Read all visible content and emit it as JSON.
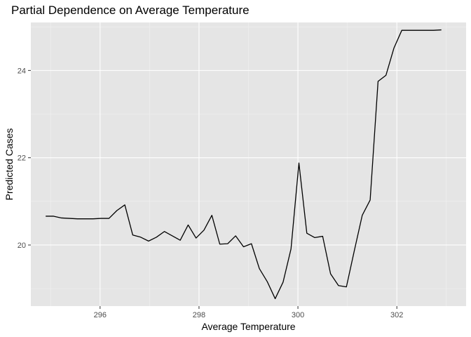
{
  "chart_data": {
    "type": "line",
    "title": "Partial Dependence on Average Temperature",
    "xlabel": "Average Temperature",
    "ylabel": "Predicted Cases",
    "xlim": [
      294.6,
      303.4
    ],
    "ylim": [
      18.6,
      25.1
    ],
    "x_ticks": [
      296,
      298,
      300,
      302
    ],
    "y_ticks": [
      20,
      22,
      24
    ],
    "grid": true,
    "colors": {
      "panel": "#e5e5e5",
      "line": "#000000"
    },
    "series": [
      {
        "x": [
          294.9,
          295.06,
          295.22,
          295.38,
          295.54,
          295.7,
          295.86,
          296.02,
          296.18,
          296.34,
          296.5,
          296.66,
          296.82,
          296.98,
          297.14,
          297.3,
          297.46,
          297.62,
          297.78,
          297.94,
          298.1,
          298.26,
          298.42,
          298.58,
          298.74,
          298.9,
          299.06,
          299.22,
          299.38,
          299.54,
          299.7,
          299.86,
          300.02,
          300.18,
          300.34,
          300.5,
          300.66,
          300.82,
          300.98,
          301.14,
          301.3,
          301.46,
          301.62,
          301.78,
          301.94,
          302.1,
          302.26,
          302.42,
          302.58,
          302.74,
          302.9
        ],
        "values": [
          20.66,
          20.66,
          20.62,
          20.61,
          20.6,
          20.6,
          20.6,
          20.61,
          20.61,
          20.79,
          20.92,
          20.23,
          20.18,
          20.09,
          20.18,
          20.31,
          20.21,
          20.11,
          20.46,
          20.16,
          20.34,
          20.68,
          20.02,
          20.03,
          20.21,
          19.96,
          20.03,
          19.46,
          19.16,
          18.77,
          19.15,
          19.91,
          21.88,
          20.27,
          20.17,
          20.2,
          19.34,
          19.07,
          19.04,
          19.87,
          20.68,
          21.03,
          23.75,
          23.89,
          24.51,
          24.92,
          24.92,
          24.92,
          24.92,
          24.92,
          24.93
        ]
      }
    ]
  }
}
